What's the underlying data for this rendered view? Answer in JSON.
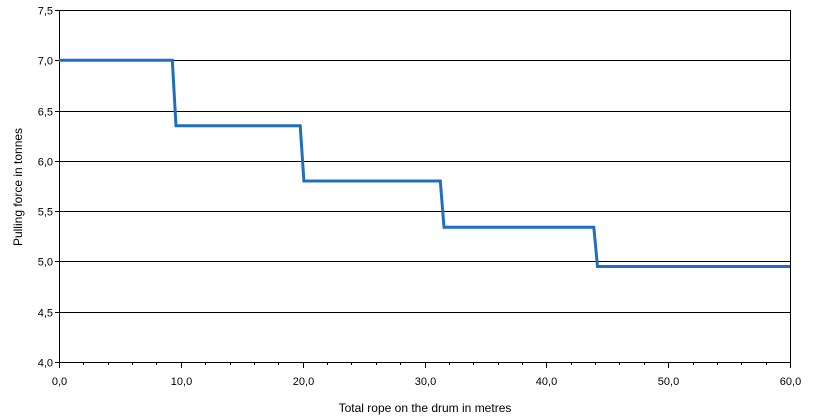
{
  "chart_data": {
    "type": "line",
    "title": "",
    "xlabel": "Total rope on the drum in metres",
    "ylabel": "Pulling force in tonnes",
    "xlim": [
      0,
      60
    ],
    "ylim": [
      4.0,
      7.5
    ],
    "x_ticks": [
      0,
      10,
      20,
      30,
      40,
      50,
      60
    ],
    "x_tick_labels": [
      "0,0",
      "10,0",
      "20,0",
      "30,0",
      "40,0",
      "50,0",
      "60,0"
    ],
    "y_ticks": [
      4.0,
      4.5,
      5.0,
      5.5,
      6.0,
      6.5,
      7.0,
      7.5
    ],
    "y_tick_labels": [
      "4,0",
      "4,5",
      "5,0",
      "5,5",
      "6,0",
      "6,5",
      "7,0",
      "7,5"
    ],
    "x_minor_step": 2,
    "grid": "horizontal",
    "legend": "none",
    "series": [
      {
        "color": "#1f6fc0",
        "points": [
          [
            0,
            7.0
          ],
          [
            9.3,
            7.0
          ],
          [
            9.6,
            6.35
          ],
          [
            19.8,
            6.35
          ],
          [
            20.1,
            5.8
          ],
          [
            31.3,
            5.8
          ],
          [
            31.6,
            5.34
          ],
          [
            43.9,
            5.34
          ],
          [
            44.2,
            4.95
          ],
          [
            60,
            4.95
          ]
        ]
      }
    ]
  }
}
